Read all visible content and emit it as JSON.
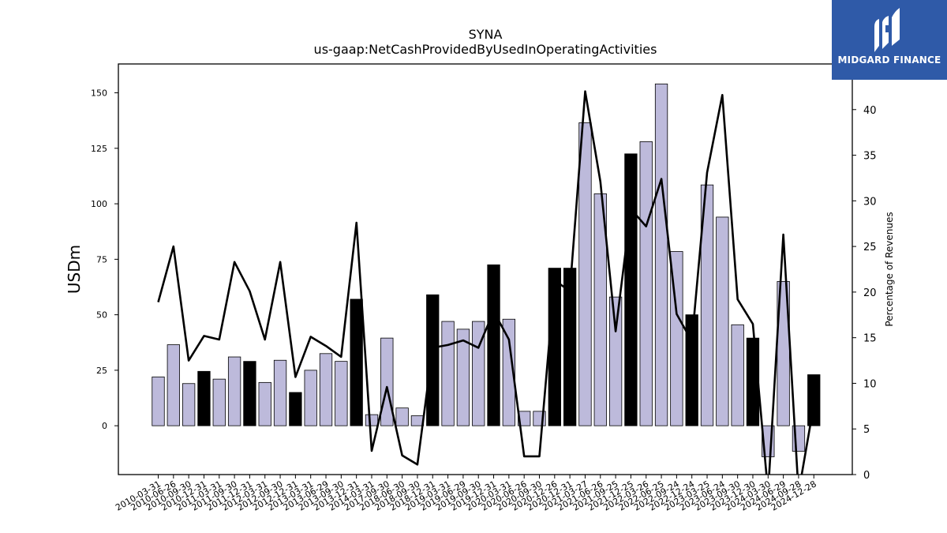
{
  "chart_data": {
    "type": "bar",
    "title": "SYNA",
    "subtitle": "us-gaap:NetCashProvidedByUsedInOperatingActivities",
    "ylabel": "USDm",
    "y2label": "Percentage of Revenues",
    "ylim": [
      -22,
      163
    ],
    "y2lim": [
      0,
      45
    ],
    "yticks": [
      0,
      25,
      50,
      75,
      100,
      125,
      150
    ],
    "y2ticks": [
      0,
      5,
      10,
      15,
      20,
      25,
      30,
      35,
      40
    ],
    "categories": [
      "2010-03-31",
      "2010-06-26",
      "2010-09-30",
      "2010-12-31",
      "2011-03-31",
      "2011-09-30",
      "2011-12-31",
      "2012-03-31",
      "2012-09-30",
      "2012-12-31",
      "2013-03-31",
      "2013-06-29",
      "2013-09-30",
      "2013-12-31",
      "2014-03-31",
      "2017-09-30",
      "2018-06-30",
      "2018-09-30",
      "2018-12-31",
      "2019-03-31",
      "2019-06-29",
      "2019-09-30",
      "2019-12-31",
      "2020-03-31",
      "2020-06-26",
      "2020-09-30",
      "2020-12-26",
      "2020-12-31",
      "2021-03-27",
      "2021-06-26",
      "2021-09-25",
      "2021-12-25",
      "2022-03-26",
      "2022-06-25",
      "2022-09-24",
      "2022-12-24",
      "2023-03-25",
      "2023-06-24",
      "2023-09-30",
      "2023-12-30",
      "2024-03-30",
      "2024-06-29",
      "2024-09-28",
      "2024-12-28"
    ],
    "series": [
      {
        "values": [
          22,
          36.5,
          19,
          24.5,
          21,
          31,
          29,
          19.5,
          29.5,
          15,
          25,
          32.5,
          29,
          57,
          5,
          39.5,
          8,
          4.5,
          59,
          47,
          43.5,
          47,
          72.5,
          48,
          6.5,
          6.5,
          71,
          71,
          136.5,
          104.5,
          58,
          122.5,
          128,
          154,
          78.5,
          50,
          108.5,
          94,
          45.5,
          39.5,
          -14,
          65,
          -11.5,
          23
        ],
        "highlight": [
          false,
          false,
          false,
          true,
          false,
          false,
          true,
          false,
          false,
          true,
          false,
          false,
          false,
          true,
          false,
          false,
          false,
          false,
          true,
          false,
          false,
          false,
          true,
          false,
          false,
          false,
          true,
          true,
          false,
          false,
          false,
          true,
          false,
          false,
          false,
          true,
          false,
          false,
          false,
          true,
          false,
          false,
          false,
          true
        ]
      },
      {
        "values": [
          18.9,
          25,
          12.5,
          15.2,
          14.8,
          23.3,
          20.1,
          14.8,
          23.3,
          10.7,
          15.1,
          14.1,
          12.9,
          27.6,
          2.6,
          9.6,
          2.1,
          1.1,
          13.9,
          14.2,
          14.7,
          13.9,
          17.9,
          14.8,
          2,
          2,
          21.3,
          20.1,
          42,
          32.1,
          15.7,
          29.1,
          27.2,
          32.4,
          17.6,
          14.6,
          33.1,
          41.6,
          19.2,
          16.5,
          -2,
          26.3,
          -2,
          7.7
        ],
        "axis": "right"
      }
    ],
    "colors": {
      "bar_fill": "#bdbadb",
      "bar_highlight": "#000000",
      "line": "#000000"
    },
    "grid": false,
    "legend": "none"
  },
  "logo": {
    "text": "MIDGARD FINANCE",
    "color": "#2f5aa8"
  }
}
